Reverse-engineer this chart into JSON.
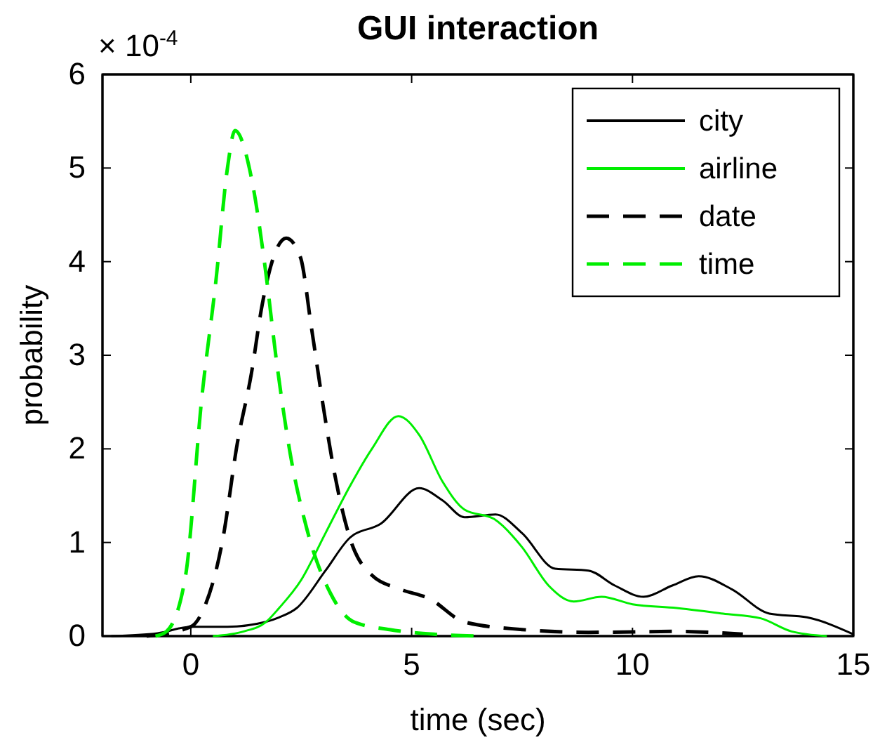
{
  "chart_data": {
    "type": "line",
    "title": "GUI interaction",
    "xlabel": "time (sec)",
    "ylabel": "probability",
    "annotations": [
      "× 10$^{-4}$"
    ],
    "xlim": [
      -2,
      15
    ],
    "xticks": [
      0,
      5,
      10,
      15
    ],
    "ylim": [
      0,
      6
    ],
    "yticks": [
      0,
      1,
      2,
      3,
      4,
      5,
      6
    ],
    "grid": false,
    "legend": "top right",
    "marker": "none",
    "series": [
      {
        "name": "city",
        "color": "#000000",
        "line_style": "solid",
        "x": [
          -1.8,
          -0.75,
          0,
          0.83,
          1.68,
          2.0,
          2.4,
          3.05,
          3.6,
          4.3,
          5.17,
          5.7,
          6.2,
          6.9,
          7.5,
          8.25,
          9.0,
          9.6,
          10.25,
          10.9,
          11.5,
          12.25,
          13.1,
          13.95,
          15
        ],
        "values": [
          0,
          0.03,
          0.1,
          0.1,
          0.15,
          0.2,
          0.3,
          0.7,
          1.05,
          1.2,
          1.58,
          1.45,
          1.27,
          1.3,
          1.1,
          0.72,
          0.7,
          0.54,
          0.42,
          0.54,
          0.64,
          0.5,
          0.24,
          0.2,
          0.02
        ]
      },
      {
        "name": "airline",
        "color": "#00ee00",
        "line_style": "solid",
        "x": [
          0.5,
          1.2,
          1.7,
          2.0,
          2.5,
          3.05,
          3.6,
          4.1,
          4.7,
          5.17,
          5.7,
          6.2,
          6.87,
          7.5,
          8.1,
          8.67,
          9.3,
          10.0,
          11.0,
          12.05,
          12.9,
          13.6,
          14.4
        ],
        "values": [
          0,
          0.05,
          0.15,
          0.3,
          0.6,
          1.1,
          1.6,
          2.0,
          2.35,
          2.15,
          1.65,
          1.35,
          1.25,
          0.95,
          0.54,
          0.37,
          0.42,
          0.34,
          0.3,
          0.24,
          0.19,
          0.05,
          0
        ]
      },
      {
        "name": "date",
        "color": "#000000",
        "line_style": "dashed",
        "x": [
          -1,
          0,
          0.3,
          0.73,
          1.05,
          1.37,
          1.62,
          1.84,
          2.16,
          2.48,
          2.73,
          3.0,
          3.27,
          3.6,
          4.1,
          4.75,
          5.4,
          6.2,
          7.5,
          9,
          11,
          12.5
        ],
        "values": [
          0,
          0.1,
          0.3,
          1.05,
          2.05,
          2.8,
          3.55,
          4.0,
          4.25,
          4.05,
          3.3,
          2.45,
          1.7,
          1.05,
          0.65,
          0.5,
          0.4,
          0.15,
          0.07,
          0.04,
          0.05,
          0.02
        ]
      },
      {
        "name": "time",
        "color": "#00ee00",
        "line_style": "dashed",
        "x": [
          -0.8,
          -0.55,
          -0.12,
          0.25,
          0.57,
          0.83,
          1.0,
          1.37,
          1.68,
          1.94,
          2.25,
          2.63,
          3.17,
          3.7,
          4.5,
          5.5,
          6.5
        ],
        "values": [
          0,
          0.05,
          0.64,
          2.55,
          3.8,
          5.0,
          5.4,
          4.9,
          3.95,
          2.94,
          1.95,
          1.14,
          0.45,
          0.15,
          0.07,
          0.02,
          0
        ]
      }
    ]
  }
}
